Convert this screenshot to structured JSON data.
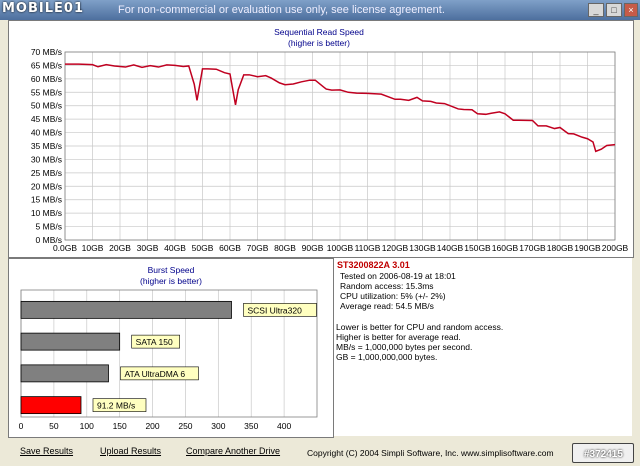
{
  "titlebar": {
    "logo": "MOBILE01",
    "title": "For non-commercial or evaluation use only, see license agreement."
  },
  "chart_data": [
    {
      "type": "line",
      "title": "Sequential Read Speed",
      "subtitle": "(higher is better)",
      "ylim": [
        0,
        70
      ],
      "yticks": [
        "0 MB/s",
        "5 MB/s",
        "10 MB/s",
        "15 MB/s",
        "20 MB/s",
        "25 MB/s",
        "30 MB/s",
        "35 MB/s",
        "40 MB/s",
        "45 MB/s",
        "50 MB/s",
        "55 MB/s",
        "60 MB/s",
        "65 MB/s",
        "70 MB/s"
      ],
      "xticks": [
        "0.0GB",
        "10GB",
        "20GB",
        "30GB",
        "40GB",
        "50GB",
        "60GB",
        "70GB",
        "80GB",
        "90GB",
        "100GB",
        "110GB",
        "120GB",
        "130GB",
        "140GB",
        "150GB",
        "160GB",
        "170GB",
        "180GB",
        "190GB",
        "200GB"
      ],
      "xlim": [
        0,
        200
      ],
      "series": [
        {
          "color": "#c00020",
          "x": [
            0,
            5,
            10,
            12,
            15,
            18,
            22,
            25,
            28,
            31,
            34,
            37,
            40,
            43,
            45,
            47,
            48,
            50,
            52,
            55,
            58,
            60,
            62,
            63,
            65,
            67,
            70,
            73,
            75,
            78,
            80,
            83,
            86,
            89,
            91,
            94,
            95,
            97,
            100,
            103,
            106,
            110,
            115,
            120,
            122,
            125,
            128,
            130,
            133,
            135,
            138,
            140,
            143,
            145,
            148,
            150,
            153,
            155,
            158,
            160,
            163,
            165,
            170,
            172,
            175,
            178,
            180,
            183,
            185,
            188,
            190,
            192,
            193,
            195,
            197,
            200
          ],
          "y": [
            65.5,
            65.5,
            65.3,
            64.5,
            65.3,
            64.8,
            64.4,
            65.2,
            64.3,
            64.9,
            64.4,
            65.2,
            65.0,
            64.6,
            64.8,
            58,
            52,
            63.7,
            63.7,
            63.6,
            62.3,
            61.8,
            50.3,
            56,
            61.5,
            61.5,
            60.8,
            61.2,
            60.3,
            58.5,
            57.8,
            58.1,
            58.9,
            59.5,
            59.5,
            57.0,
            56.2,
            55.8,
            55.9,
            55.0,
            54.7,
            54.6,
            54.3,
            52.4,
            52.4,
            52.0,
            53.1,
            51.8,
            51.6,
            51.0,
            50.8,
            50.0,
            48.8,
            48.6,
            48.5,
            47.0,
            46.8,
            47.2,
            47.7,
            47.0,
            44.6,
            44.6,
            44.5,
            42.5,
            42.5,
            41.5,
            41.9,
            39.6,
            39.5,
            38.3,
            37.7,
            36.5,
            33.0,
            33.8,
            35.2,
            35.5
          ]
        }
      ]
    },
    {
      "type": "bar",
      "orientation": "horizontal",
      "title": "Burst Speed",
      "subtitle": "(higher is better)",
      "xlim": [
        0,
        450
      ],
      "xticks": [
        "0",
        "50",
        "100",
        "150",
        "200",
        "250",
        "300",
        "350",
        "400"
      ],
      "bars": [
        {
          "label": "SCSI Ultra320",
          "value": 320,
          "color": "#808080"
        },
        {
          "label": "SATA 150",
          "value": 150,
          "color": "#808080"
        },
        {
          "label": "ATA UltraDMA 6",
          "value": 133,
          "color": "#808080"
        },
        {
          "label": "91.2 MB/s",
          "value": 91.2,
          "color": "#ff0000"
        }
      ]
    }
  ],
  "info": {
    "drive": "ST3200822A 3.01",
    "lines": [
      "Tested on 2006-08-19 at 18:01",
      "Random access: 15.3ms",
      "CPU utilization: 5% (+/- 2%)",
      "Average read: 54.5 MB/s"
    ],
    "notes": [
      "Lower is better for CPU and random access.",
      "Higher is better for average read.",
      "MB/s = 1,000,000 bytes per second.",
      "GB = 1,000,000,000 bytes."
    ]
  },
  "buttons": {
    "save": "Save Results",
    "upload": "Upload Results",
    "compare": "Compare Another Drive"
  },
  "copyright": "Copyright (C) 2004 Simpli Software, Inc. www.simplisoftware.com",
  "watermark": "#372415"
}
